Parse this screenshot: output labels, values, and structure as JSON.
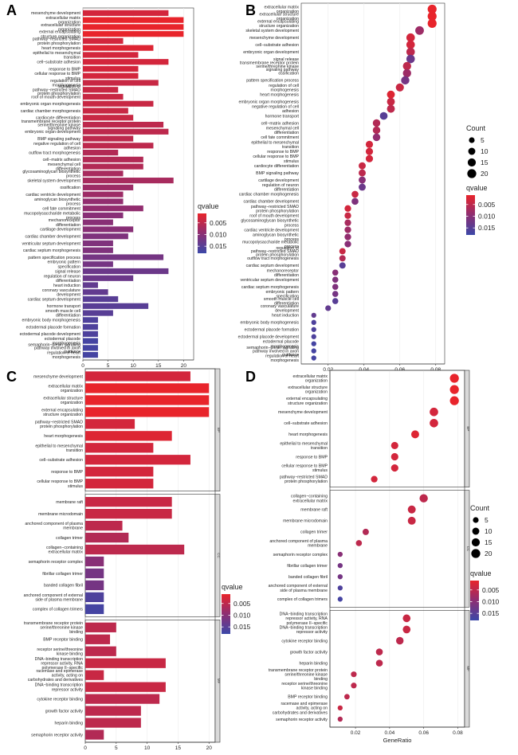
{
  "colors": {
    "high_sig": "#e8242b",
    "low_sig": "#3b47a8",
    "grid": "#ececec",
    "strip": "#d9d9d9"
  },
  "chart_data": [
    {
      "panel": "A",
      "type": "bar",
      "orientation": "horizontal",
      "xlim": [
        0,
        22
      ],
      "xticks": [
        0,
        5,
        10,
        15,
        20
      ],
      "xlabel": "",
      "legend": {
        "title": "qvalue",
        "ticks": [
          0.005,
          0.01,
          0.015
        ],
        "tick_labels": [
          "0.005",
          "0.010",
          "0.015"
        ],
        "range": [
          0.001,
          0.018
        ],
        "placement": "right"
      },
      "categories": [
        "mesenchyme development",
        "extracellular matrix organization",
        "extracellular structure organization",
        "external encapsulating structure organization",
        "pathway−restricted SMAD protein phosphorylation",
        "heart morphogenesis",
        "epithelial to mesenchymal transition",
        "cell−substrate adhesion",
        "response to BMP",
        "cellular response to BMP stimulus",
        "regulation of cell morphogenesis",
        "regulation of pathway−restricted SMAD protein phosphorylation",
        "roof of mouth development",
        "embryonic organ morphogenesis",
        "cardiac chamber morphogenesis",
        "cardiocyte differentiation",
        "transmembrane receptor protein serine/threonine kinase signaling pathway",
        "embryonic organ development",
        "BMP signaling pathway",
        "negative regulation of cell adhesion",
        "outflow tract morphogenesis",
        "cell−matrix adhesion",
        "mesenchymal cell differentiation",
        "glycosaminoglycan biosynthetic process",
        "skeletal system development",
        "ossification",
        "cardiac ventricle development",
        "aminoglycan biosynthetic process",
        "cell fate commitment",
        "mucopolysaccharide metabolic process",
        "mechanoreceptor differentiation",
        "cartilage development",
        "cardiac chamber development",
        "ventricular septum development",
        "cardiac septum morphogenesis",
        "pattern specification process",
        "embryonic pattern specification",
        "signal release",
        "regulation of neuron differentiation",
        "heart induction",
        "coronary vasculature development",
        "cardiac septum development",
        "hormone transport",
        "smooth muscle cell differentiation",
        "embryonic body morphogenesis",
        "ectodermal placode formation",
        "ectodermal placode development",
        "ectodermal placode morphogenesis",
        "semaphorin−plexin signaling pathway involved in axon guidance",
        "regulation of heart morphogenesis"
      ],
      "values": [
        17,
        20,
        20,
        20,
        8,
        14,
        11,
        17,
        11,
        11,
        15,
        7,
        8,
        14,
        9,
        10,
        16,
        17,
        10,
        14,
        7,
        12,
        12,
        8,
        18,
        10,
        8,
        8,
        12,
        8,
        6,
        10,
        9,
        6,
        6,
        16,
        6,
        17,
        10,
        3,
        5,
        7,
        13,
        6,
        3,
        3,
        3,
        3,
        3,
        3
      ],
      "qvalues": [
        0.003,
        0.001,
        0.001,
        0.001,
        0.003,
        0.002,
        0.003,
        0.003,
        0.003,
        0.003,
        0.004,
        0.004,
        0.004,
        0.004,
        0.004,
        0.004,
        0.005,
        0.005,
        0.005,
        0.005,
        0.006,
        0.006,
        0.006,
        0.007,
        0.007,
        0.008,
        0.008,
        0.009,
        0.009,
        0.01,
        0.01,
        0.01,
        0.011,
        0.011,
        0.011,
        0.012,
        0.012,
        0.013,
        0.013,
        0.014,
        0.014,
        0.015,
        0.015,
        0.015,
        0.016,
        0.016,
        0.016,
        0.017,
        0.017,
        0.017
      ]
    },
    {
      "panel": "B",
      "type": "scatter",
      "xlim": [
        0.005,
        0.085
      ],
      "xticks": [
        0.02,
        0.04,
        0.06,
        0.08
      ],
      "xlabel": "GeneRatio",
      "legend": {
        "size_title": "Count",
        "sizes": [
          5,
          10,
          15,
          20
        ],
        "color_title": "qvalue",
        "ticks": [
          0.005,
          0.01,
          0.015
        ],
        "tick_labels": [
          "0.005",
          "0.010",
          "0.015"
        ],
        "range": [
          0.001,
          0.018
        ],
        "placement": "right"
      },
      "categories": [
        "extracellular matrix organization",
        "extracellular structure organization",
        "external encapsulating structure organization",
        "skeletal system development",
        "mesenchyme development",
        "cell−substrate adhesion",
        "embryonic organ development",
        "signal release",
        "transmembrane receptor protein serine/threonine kinase signaling pathway",
        "ossification",
        "pattern specification process",
        "regulation of cell morphogenesis",
        "heart morphogenesis",
        "embryonic organ morphogenesis",
        "negative regulation of cell adhesion",
        "hormone transport",
        "cell−matrix adhesion",
        "mesenchymal cell differentiation",
        "cell fate commitment",
        "epithelial to mesenchymal transition",
        "response to BMP",
        "cellular response to BMP stimulus",
        "cardiocyte differentiation",
        "BMP signaling pathway",
        "cartilage development",
        "regulation of neuron differentiation",
        "cardiac chamber morphogenesis",
        "cardiac chamber development",
        "pathway−restricted SMAD protein phosphorylation",
        "roof of mouth development",
        "glycosaminoglycan biosynthetic process",
        "cardiac ventricle development",
        "aminoglycan biosynthetic process",
        "mucopolysaccharide metabolic process",
        "regulation of pathway−restricted SMAD protein phosphorylation",
        "outflow tract morphogenesis",
        "cardiac septum development",
        "mechanoreceptor differentiation",
        "ventricular septum development",
        "cardiac septum morphogenesis",
        "embryonic pattern specification",
        "smooth muscle cell differentiation",
        "coronary vasculature development",
        "heart induction",
        "embryonic body morphogenesis",
        "ectodermal placode formation",
        "ectodermal placode development",
        "ectodermal placode morphogenesis",
        "semaphorin−plexin signaling pathway involved in axon guidance",
        "regulation of heart morphogenesis"
      ],
      "x": [
        0.078,
        0.078,
        0.078,
        0.071,
        0.066,
        0.066,
        0.066,
        0.066,
        0.064,
        0.064,
        0.063,
        0.06,
        0.055,
        0.055,
        0.055,
        0.051,
        0.047,
        0.047,
        0.047,
        0.043,
        0.043,
        0.043,
        0.039,
        0.039,
        0.039,
        0.039,
        0.035,
        0.035,
        0.031,
        0.031,
        0.031,
        0.031,
        0.031,
        0.031,
        0.028,
        0.028,
        0.028,
        0.024,
        0.024,
        0.024,
        0.024,
        0.024,
        0.02,
        0.012,
        0.012,
        0.012,
        0.012,
        0.012,
        0.012,
        0.012
      ],
      "counts": [
        20,
        20,
        20,
        18,
        17,
        17,
        17,
        17,
        16,
        16,
        16,
        15,
        14,
        14,
        14,
        13,
        12,
        12,
        12,
        11,
        11,
        11,
        10,
        10,
        10,
        10,
        9,
        9,
        8,
        8,
        8,
        8,
        8,
        8,
        7,
        7,
        7,
        6,
        6,
        6,
        6,
        6,
        5,
        3,
        3,
        3,
        3,
        3,
        3,
        3
      ],
      "qvalues": [
        0.001,
        0.001,
        0.001,
        0.008,
        0.003,
        0.003,
        0.005,
        0.013,
        0.005,
        0.008,
        0.012,
        0.004,
        0.002,
        0.004,
        0.005,
        0.015,
        0.006,
        0.006,
        0.009,
        0.003,
        0.003,
        0.003,
        0.004,
        0.005,
        0.01,
        0.013,
        0.004,
        0.011,
        0.003,
        0.004,
        0.007,
        0.008,
        0.009,
        0.01,
        0.004,
        0.006,
        0.015,
        0.01,
        0.011,
        0.011,
        0.012,
        0.015,
        0.014,
        0.014,
        0.016,
        0.016,
        0.016,
        0.017,
        0.017,
        0.017
      ]
    },
    {
      "panel": "C",
      "type": "bar",
      "orientation": "horizontal",
      "facets": [
        "BP",
        "CC",
        "MF"
      ],
      "xlim": [
        0,
        21
      ],
      "xticks": [
        0,
        5,
        10,
        15,
        20
      ],
      "xlabel": "",
      "legend": {
        "title": "qvalue",
        "ticks": [
          0.005,
          0.01,
          0.015
        ],
        "tick_labels": [
          "0.005",
          "0.010",
          "0.015"
        ],
        "range": [
          0.001,
          0.018
        ],
        "placement": "right"
      },
      "categories": [
        "mesenchyme development",
        "extracellular matrix organization",
        "extracellular structure organization",
        "external encapsulating structure organization",
        "pathway−restricted SMAD protein phosphorylation",
        "heart morphogenesis",
        "epithelial to mesenchymal transition",
        "cell−substrate adhesion",
        "response to BMP",
        "cellular response to BMP stimulus",
        "membrane raft",
        "membrane microdomain",
        "anchored component of plasma membrane",
        "collagen trimer",
        "collagen−containing extracellular matrix",
        "semaphorin receptor complex",
        "fibrillar collagen trimer",
        "banded collagen fibril",
        "anchored component of external side of plasma membrane",
        "complex of collagen trimers",
        "transmembrane receptor protein serine/threonine kinase binding",
        "BMP receptor binding",
        "receptor serine/threonine kinase binding",
        "DNA−binding transcription repressor activity, RNA polymerase II−specific",
        "racemase and epimerase activity, acting on carbohydrates and derivatives",
        "DNA−binding transcription repressor activity",
        "cytokine receptor binding",
        "growth factor activity",
        "heparin binding",
        "semaphorin receptor activity"
      ],
      "facet_of": [
        "BP",
        "BP",
        "BP",
        "BP",
        "BP",
        "BP",
        "BP",
        "BP",
        "BP",
        "BP",
        "CC",
        "CC",
        "CC",
        "CC",
        "CC",
        "CC",
        "CC",
        "CC",
        "CC",
        "CC",
        "MF",
        "MF",
        "MF",
        "MF",
        "MF",
        "MF",
        "MF",
        "MF",
        "MF",
        "MF"
      ],
      "values": [
        17,
        20,
        20,
        20,
        8,
        14,
        11,
        17,
        11,
        11,
        14,
        14,
        6,
        7,
        16,
        3,
        3,
        3,
        3,
        3,
        5,
        4,
        5,
        13,
        3,
        13,
        12,
        9,
        9,
        3
      ],
      "qvalues": [
        0.003,
        0.001,
        0.001,
        0.001,
        0.003,
        0.002,
        0.003,
        0.003,
        0.003,
        0.003,
        0.004,
        0.004,
        0.005,
        0.006,
        0.005,
        0.01,
        0.012,
        0.012,
        0.016,
        0.017,
        0.005,
        0.005,
        0.005,
        0.004,
        0.004,
        0.004,
        0.005,
        0.005,
        0.005,
        0.006
      ]
    },
    {
      "panel": "D",
      "type": "scatter",
      "facets": [
        "BP",
        "CC",
        "MF"
      ],
      "xlim": [
        0.005,
        0.084
      ],
      "xticks": [
        0.02,
        0.04,
        0.06,
        0.08
      ],
      "xlabel": "GeneRatio",
      "legend": {
        "size_title": "Count",
        "sizes": [
          5,
          10,
          15,
          20
        ],
        "color_title": "qvalue",
        "ticks": [
          0.005,
          0.01,
          0.015
        ],
        "tick_labels": [
          "0.005",
          "0.010",
          "0.015"
        ],
        "range": [
          0.001,
          0.018
        ],
        "placement": "right"
      },
      "categories": [
        "extracellular matrix organization",
        "extracellular structure organization",
        "external encapsulating structure organization",
        "mesenchyme development",
        "cell−substrate adhesion",
        "heart morphogenesis",
        "epithelial to mesenchymal transition",
        "response to BMP",
        "cellular response to BMP stimulus",
        "pathway−restricted SMAD protein phosphorylation",
        "collagen−containing extracellular matrix",
        "membrane raft",
        "membrane microdomain",
        "collagen trimer",
        "anchored component of plasma membrane",
        "semaphorin receptor complex",
        "fibrillar collagen trimer",
        "banded collagen fibril",
        "anchored component of external side of plasma membrane",
        "complex of collagen trimers",
        "DNA−binding transcription repressor activity, RNA polymerase II−specific",
        "DNA−binding transcription repressor activity",
        "cytokine receptor binding",
        "growth factor activity",
        "heparin binding",
        "transmembrane receptor protein serine/threonine kinase binding",
        "receptor serine/threonine kinase binding",
        "BMP receptor binding",
        "racemase and epimerase activity, acting on carbohydrates and derivatives",
        "semaphorin receptor activity"
      ],
      "facet_of": [
        "BP",
        "BP",
        "BP",
        "BP",
        "BP",
        "BP",
        "BP",
        "BP",
        "BP",
        "BP",
        "CC",
        "CC",
        "CC",
        "CC",
        "CC",
        "CC",
        "CC",
        "CC",
        "CC",
        "CC",
        "MF",
        "MF",
        "MF",
        "MF",
        "MF",
        "MF",
        "MF",
        "MF",
        "MF",
        "MF"
      ],
      "x": [
        0.078,
        0.078,
        0.078,
        0.066,
        0.066,
        0.055,
        0.043,
        0.043,
        0.043,
        0.031,
        0.06,
        0.053,
        0.053,
        0.026,
        0.022,
        0.011,
        0.011,
        0.011,
        0.011,
        0.011,
        0.05,
        0.05,
        0.046,
        0.034,
        0.034,
        0.019,
        0.019,
        0.015,
        0.011,
        0.011
      ],
      "counts": [
        20,
        20,
        20,
        17,
        17,
        14,
        11,
        11,
        11,
        8,
        16,
        14,
        14,
        7,
        6,
        3,
        3,
        3,
        3,
        3,
        13,
        13,
        12,
        9,
        9,
        5,
        5,
        4,
        3,
        3
      ],
      "qvalues": [
        0.001,
        0.001,
        0.001,
        0.003,
        0.003,
        0.002,
        0.003,
        0.003,
        0.003,
        0.003,
        0.005,
        0.004,
        0.004,
        0.006,
        0.005,
        0.01,
        0.012,
        0.012,
        0.016,
        0.017,
        0.004,
        0.004,
        0.005,
        0.005,
        0.005,
        0.005,
        0.005,
        0.005,
        0.004,
        0.006
      ]
    }
  ]
}
